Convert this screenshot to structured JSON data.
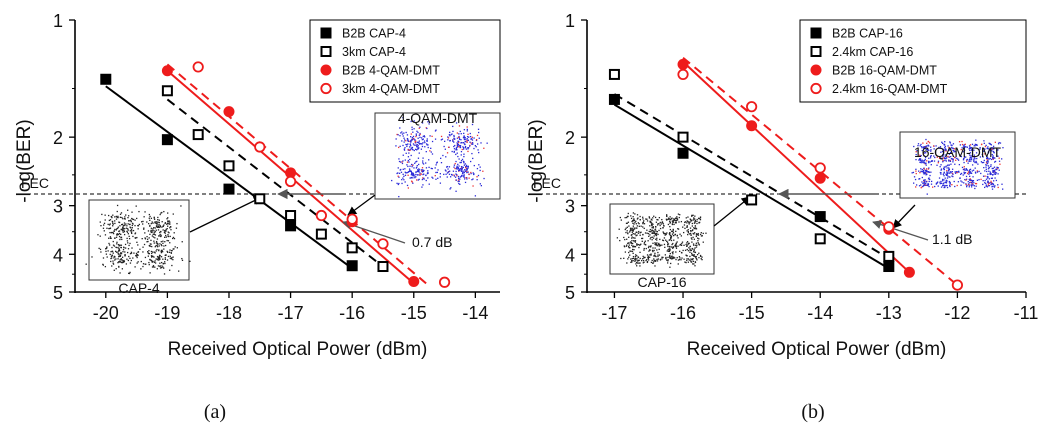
{
  "chart_data": [
    {
      "type": "line",
      "panel_label": "(a)",
      "xlabel": "Received Optical Power (dBm)",
      "ylabel": "-log(BER)",
      "xlim": [
        -20.5,
        -13.6
      ],
      "ylim": [
        1,
        5
      ],
      "y_scale": "log",
      "x_ticks": [
        -20,
        -19,
        -18,
        -17,
        -16,
        -15,
        -14
      ],
      "y_ticks": [
        1,
        2,
        3,
        4,
        5
      ],
      "legend_position": "top-right",
      "threshold": {
        "label": "FEC",
        "value": 2.8
      },
      "series": [
        {
          "name": "B2B CAP-4",
          "color": "#000000",
          "marker": "square-filled",
          "line": "solid",
          "x": [
            -20,
            -19,
            -18,
            -17,
            -16
          ],
          "y": [
            1.42,
            2.03,
            2.72,
            3.38,
            4.28
          ],
          "fit_x": [
            -20,
            -16
          ],
          "fit_y": [
            1.48,
            4.35
          ]
        },
        {
          "name": "3km CAP-4",
          "color": "#000000",
          "marker": "square-open",
          "line": "dashed",
          "x": [
            -19,
            -18.5,
            -18,
            -17.5,
            -17,
            -16.5,
            -16,
            -15.5
          ],
          "y": [
            1.52,
            1.97,
            2.37,
            2.88,
            3.18,
            3.55,
            3.85,
            4.3
          ],
          "fit_x": [
            -19,
            -15.5
          ],
          "fit_y": [
            1.6,
            4.3
          ]
        },
        {
          "name": "B2B 4-QAM-DMT",
          "color": "#ee1c1c",
          "marker": "circle-filled",
          "line": "solid",
          "x": [
            -19,
            -18,
            -17,
            -16,
            -15
          ],
          "y": [
            1.35,
            1.72,
            2.47,
            3.3,
            4.7
          ],
          "fit_x": [
            -19,
            -15
          ],
          "fit_y": [
            1.35,
            4.75
          ]
        },
        {
          "name": "3km 4-QAM-DMT",
          "color": "#ee1c1c",
          "marker": "circle-open",
          "line": "dashed",
          "x": [
            -18.5,
            -17.5,
            -17,
            -16.5,
            -16,
            -15.5,
            -14.5
          ],
          "y": [
            1.32,
            2.12,
            2.6,
            3.18,
            3.25,
            3.76,
            4.72
          ],
          "fit_x": [
            -19,
            -14.8
          ],
          "fit_y": [
            1.3,
            4.75
          ]
        }
      ],
      "insets": [
        {
          "label": "CAP-4",
          "kind": "cap4"
        },
        {
          "label": "4-QAM-DMT",
          "kind": "qam4"
        }
      ],
      "annotations": [
        {
          "text": "0.7 dB"
        }
      ],
      "fec_arrow": {
        "x_from": -16.1,
        "x_to": -17.2
      }
    },
    {
      "type": "line",
      "panel_label": "(b)",
      "xlabel": "Received Optical Power (dBm)",
      "ylabel": "-log(BER)",
      "xlim": [
        -17.4,
        -11
      ],
      "ylim": [
        1,
        5
      ],
      "y_scale": "log",
      "x_ticks": [
        -17,
        -16,
        -15,
        -14,
        -13,
        -12,
        -11
      ],
      "y_ticks": [
        1,
        2,
        3,
        4,
        5
      ],
      "legend_position": "top-right",
      "threshold": {
        "label": "FEC",
        "value": 2.8
      },
      "series": [
        {
          "name": "B2B CAP-16",
          "color": "#000000",
          "marker": "square-filled",
          "line": "solid",
          "x": [
            -17,
            -16,
            -14,
            -13
          ],
          "y": [
            1.6,
            2.2,
            3.2,
            4.3
          ],
          "fit_x": [
            -17,
            -13
          ],
          "fit_y": [
            1.65,
            4.35
          ]
        },
        {
          "name": "2.4km CAP-16",
          "color": "#000000",
          "marker": "square-open",
          "line": "dashed",
          "x": [
            -17,
            -16,
            -15,
            -14,
            -13
          ],
          "y": [
            1.38,
            2.0,
            2.9,
            3.65,
            4.05
          ],
          "fit_x": [
            -17,
            -13
          ],
          "fit_y": [
            1.55,
            4.1
          ]
        },
        {
          "name": "B2B 16-QAM-DMT",
          "color": "#ee1c1c",
          "marker": "circle-filled",
          "line": "solid",
          "x": [
            -16,
            -15,
            -14,
            -13,
            -12.7
          ],
          "y": [
            1.3,
            1.87,
            2.55,
            3.45,
            4.45
          ],
          "fit_x": [
            -16,
            -12.7
          ],
          "fit_y": [
            1.28,
            4.45
          ]
        },
        {
          "name": "2.4km 16-QAM-DMT",
          "color": "#ee1c1c",
          "marker": "circle-open",
          "line": "dashed",
          "x": [
            -16,
            -15,
            -14,
            -13,
            -12
          ],
          "y": [
            1.38,
            1.67,
            2.4,
            3.4,
            4.8
          ],
          "fit_x": [
            -16,
            -12
          ],
          "fit_y": [
            1.25,
            4.8
          ]
        }
      ],
      "insets": [
        {
          "label": "CAP-16",
          "kind": "cap16"
        },
        {
          "label": "16-QAM-DMT",
          "kind": "qam16"
        }
      ],
      "annotations": [
        {
          "text": "1.1 dB"
        }
      ],
      "fec_arrow": {
        "x_from": -13.2,
        "x_to": -14.6
      }
    }
  ]
}
